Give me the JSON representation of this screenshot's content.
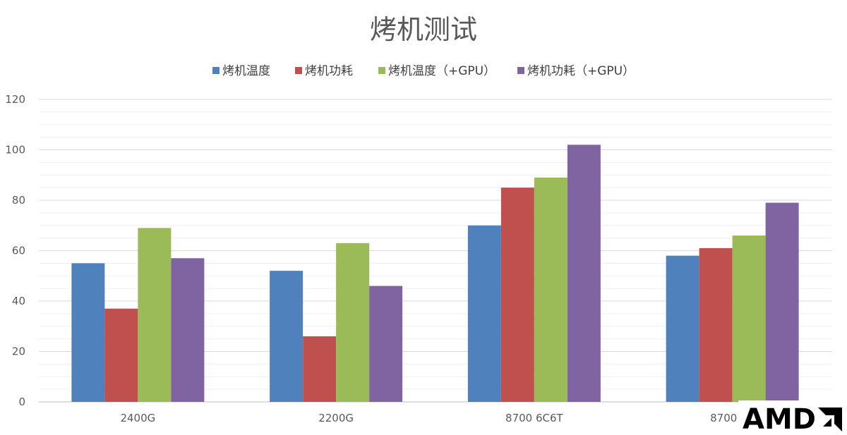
{
  "chart_data": {
    "type": "bar",
    "title": "烤机测试",
    "categories": [
      "2400G",
      "2200G",
      "8700 6C6T",
      "8700 4C"
    ],
    "series": [
      {
        "name": "烤机温度",
        "color": "#4F81BD",
        "values": [
          55,
          52,
          70,
          58
        ]
      },
      {
        "name": "烤机功耗",
        "color": "#C0504D",
        "values": [
          37,
          26,
          85,
          61
        ]
      },
      {
        "name": "烤机温度（+GPU）",
        "color": "#9BBB59",
        "values": [
          69,
          63,
          89,
          66
        ]
      },
      {
        "name": "烤机功耗（+GPU）",
        "color": "#8064A2",
        "values": [
          57,
          46,
          102,
          79
        ]
      }
    ],
    "ylim": [
      0,
      120
    ],
    "yticks": [
      0,
      20,
      40,
      60,
      80,
      100,
      120
    ],
    "minor_grid_step": 5,
    "grid": true,
    "legend": "top"
  },
  "watermark": {
    "text": "AMD",
    "icon": "amd-arrow-icon"
  }
}
